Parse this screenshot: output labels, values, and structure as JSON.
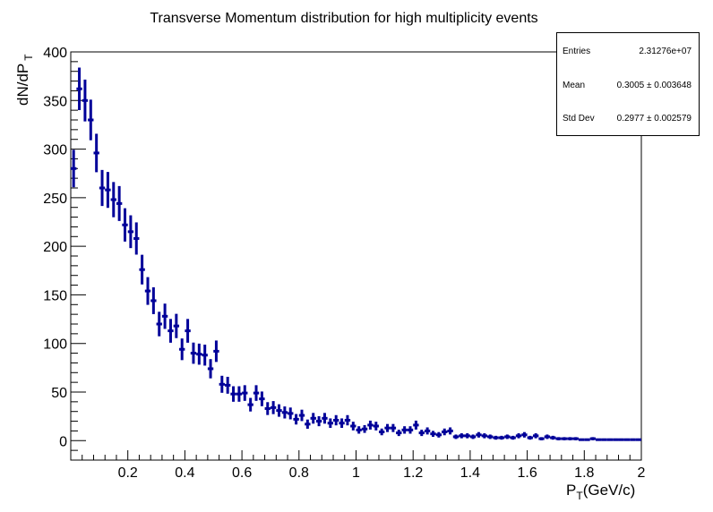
{
  "chart_data": {
    "type": "scatter",
    "style": "histogram-with-error-bars",
    "title": "Transverse Momentum distribution for high multiplicity events",
    "ylabel_main": "dN/dP",
    "ylabel_sub": "T",
    "xlabel_main": "P",
    "xlabel_sub": "T",
    "xlabel_rest": "(GeV/c)",
    "xlim": [
      0,
      2
    ],
    "ylim": [
      -20,
      400
    ],
    "x_ticks": [
      0.2,
      0.4,
      0.6,
      0.8,
      1,
      1.2,
      1.4,
      1.6,
      1.8,
      2
    ],
    "x_tick_labels": [
      "0.2",
      "0.4",
      "0.6",
      "0.8",
      "1",
      "1.2",
      "1.4",
      "1.6",
      "1.8",
      "2"
    ],
    "y_ticks": [
      0,
      50,
      100,
      150,
      200,
      250,
      300,
      350,
      400
    ],
    "y_tick_labels": [
      "0",
      "50",
      "100",
      "150",
      "200",
      "250",
      "300",
      "350",
      "400"
    ],
    "bin_width": 0.02,
    "series": [
      {
        "name": "pT",
        "color": "#000099",
        "values": [
          280,
          362,
          350,
          330,
          296,
          260,
          258,
          248,
          244,
          222,
          215,
          208,
          176,
          154,
          144,
          120,
          128,
          113,
          118,
          94,
          113,
          90,
          89,
          88,
          74,
          92,
          58,
          57,
          48,
          48,
          49,
          37,
          49,
          43,
          33,
          34,
          31,
          29,
          28,
          22,
          26,
          17,
          23,
          20,
          23,
          18,
          21,
          18,
          21,
          15,
          11,
          12,
          16,
          15,
          9,
          13,
          13,
          8,
          11,
          11,
          16,
          8,
          10,
          7,
          6,
          9,
          10,
          4,
          5,
          5,
          4,
          6,
          5,
          4,
          3,
          3,
          4,
          3,
          5,
          6,
          3,
          5,
          2,
          4,
          3,
          2,
          2,
          2,
          2,
          1,
          1,
          2,
          1,
          1,
          1,
          1,
          1,
          1,
          1,
          1
        ]
      }
    ],
    "errors_scale": 1.15,
    "stats_box": {
      "entries_label": "Entries",
      "entries_value": "2.31276e+07",
      "mean_label": "Mean",
      "mean_value": "0.3005 ± 0.003648",
      "std_label": "Std Dev",
      "std_value": "0.2977 ± 0.002579"
    },
    "grid": false
  }
}
